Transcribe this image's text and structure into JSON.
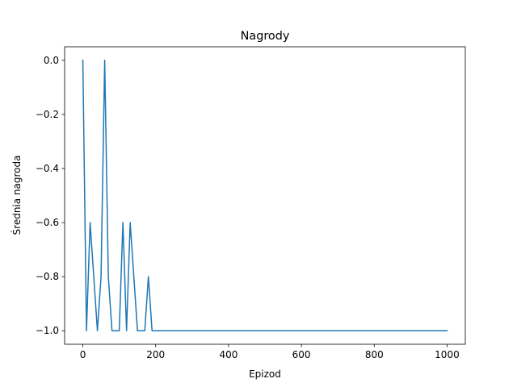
{
  "chart_data": {
    "type": "line",
    "title": "Nagrody",
    "xlabel": "Epizod",
    "ylabel": "Średnia nagroda",
    "xlim": [
      -50,
      1050
    ],
    "ylim": [
      -1.05,
      0.05
    ],
    "xticks": [
      0,
      200,
      400,
      600,
      800,
      1000
    ],
    "xtick_labels": [
      "0",
      "200",
      "400",
      "600",
      "800",
      "1000"
    ],
    "yticks": [
      0.0,
      -0.2,
      -0.4,
      -0.6,
      -0.8,
      -1.0
    ],
    "ytick_labels": [
      "0.0",
      "−0.2",
      "−0.4",
      "−0.6",
      "−0.8",
      "−1.0"
    ],
    "grid": false,
    "series": [
      {
        "color": "#1f77b4",
        "x": [
          0,
          10,
          20,
          30,
          40,
          50,
          60,
          70,
          80,
          90,
          100,
          110,
          120,
          130,
          140,
          150,
          160,
          170,
          180,
          190,
          200,
          1000
        ],
        "values": [
          0.0,
          -1.0,
          -0.6,
          -0.8,
          -1.0,
          -0.8,
          0.0,
          -0.8,
          -1.0,
          -1.0,
          -1.0,
          -0.6,
          -1.0,
          -0.6,
          -0.8,
          -1.0,
          -1.0,
          -1.0,
          -0.8,
          -1.0,
          -1.0,
          -1.0
        ]
      }
    ]
  }
}
